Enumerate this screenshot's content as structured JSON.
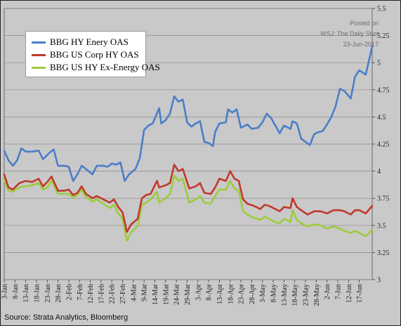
{
  "chart_data": {
    "type": "line",
    "title": "",
    "xlabel": "",
    "ylabel": "",
    "ylim": [
      3.0,
      5.5
    ],
    "y_ticks": [
      "3",
      "3.25",
      "3.5",
      "3.75",
      "4",
      "4.25",
      "4.5",
      "4.75",
      "5",
      "5.25",
      "5.5"
    ],
    "y_axis_side": "right",
    "grid": "horizontal",
    "legend_position": "top-left",
    "x_ticks": [
      "3-Jan",
      "8-Jan",
      "13-Jan",
      "18-Jan",
      "23-Jan",
      "28-Jan",
      "2-Feb",
      "7-Feb",
      "12-Feb",
      "17-Feb",
      "22-Feb",
      "27-Feb",
      "4-Mar",
      "9-Mar",
      "14-Mar",
      "19-Mar",
      "24-Mar",
      "29-Mar",
      "3-Apr",
      "8-Apr",
      "13-Apr",
      "18-Apr",
      "23-Apr",
      "28-Apr",
      "3-May",
      "8-May",
      "13-May",
      "18-May",
      "23-May",
      "28-May",
      "2-Jun",
      "7-Jun",
      "12-Jun",
      "17-Jun"
    ],
    "x_range": [
      "3-Jan",
      "23-Jun"
    ],
    "series": [
      {
        "name": "BBG HY Enery OAS",
        "color": "#4a7ec8",
        "points": [
          [
            "3-Jan",
            4.19
          ],
          [
            "5-Jan",
            4.1
          ],
          [
            "7-Jan",
            4.05
          ],
          [
            "9-Jan",
            4.1
          ],
          [
            "11-Jan",
            4.21
          ],
          [
            "13-Jan",
            4.18
          ],
          [
            "16-Jan",
            4.18
          ],
          [
            "19-Jan",
            4.19
          ],
          [
            "21-Jan",
            4.11
          ],
          [
            "24-Jan",
            4.17
          ],
          [
            "26-Jan",
            4.2
          ],
          [
            "28-Jan",
            4.05
          ],
          [
            "31-Jan",
            4.05
          ],
          [
            "2-Feb",
            4.04
          ],
          [
            "4-Feb",
            3.91
          ],
          [
            "6-Feb",
            3.97
          ],
          [
            "8-Feb",
            4.05
          ],
          [
            "10-Feb",
            4.02
          ],
          [
            "13-Feb",
            3.97
          ],
          [
            "15-Feb",
            4.05
          ],
          [
            "18-Feb",
            4.05
          ],
          [
            "20-Feb",
            4.04
          ],
          [
            "22-Feb",
            4.07
          ],
          [
            "24-Feb",
            4.06
          ],
          [
            "26-Feb",
            4.08
          ],
          [
            "28-Feb",
            3.91
          ],
          [
            "2-Mar",
            3.97
          ],
          [
            "5-Mar",
            4.02
          ],
          [
            "7-Mar",
            4.12
          ],
          [
            "9-Mar",
            4.38
          ],
          [
            "11-Mar",
            4.42
          ],
          [
            "13-Mar",
            4.44
          ],
          [
            "16-Mar",
            4.58
          ],
          [
            "17-Mar",
            4.44
          ],
          [
            "19-Mar",
            4.47
          ],
          [
            "21-Mar",
            4.53
          ],
          [
            "23-Mar",
            4.69
          ],
          [
            "25-Mar",
            4.64
          ],
          [
            "27-Mar",
            4.66
          ],
          [
            "29-Mar",
            4.45
          ],
          [
            "31-Mar",
            4.41
          ],
          [
            "2-Apr",
            4.44
          ],
          [
            "4-Apr",
            4.46
          ],
          [
            "6-Apr",
            4.27
          ],
          [
            "8-Apr",
            4.26
          ],
          [
            "10-Apr",
            4.23
          ],
          [
            "11-Apr",
            4.36
          ],
          [
            "13-Apr",
            4.44
          ],
          [
            "16-Apr",
            4.45
          ],
          [
            "17-Apr",
            4.57
          ],
          [
            "19-Apr",
            4.54
          ],
          [
            "21-Apr",
            4.57
          ],
          [
            "23-Apr",
            4.4
          ],
          [
            "26-Apr",
            4.43
          ],
          [
            "28-Apr",
            4.39
          ],
          [
            "1-May",
            4.4
          ],
          [
            "3-May",
            4.45
          ],
          [
            "5-May",
            4.53
          ],
          [
            "7-May",
            4.49
          ],
          [
            "9-May",
            4.42
          ],
          [
            "11-May",
            4.35
          ],
          [
            "13-May",
            4.42
          ],
          [
            "16-May",
            4.39
          ],
          [
            "17-May",
            4.46
          ],
          [
            "19-May",
            4.44
          ],
          [
            "21-May",
            4.3
          ],
          [
            "23-May",
            4.27
          ],
          [
            "25-May",
            4.24
          ],
          [
            "27-May",
            4.34
          ],
          [
            "29-May",
            4.36
          ],
          [
            "31-May",
            4.37
          ],
          [
            "2-Jun",
            4.43
          ],
          [
            "4-Jun",
            4.5
          ],
          [
            "6-Jun",
            4.6
          ],
          [
            "8-Jun",
            4.76
          ],
          [
            "10-Jun",
            4.74
          ],
          [
            "13-Jun",
            4.67
          ],
          [
            "15-Jun",
            4.87
          ],
          [
            "17-Jun",
            4.93
          ],
          [
            "20-Jun",
            4.89
          ],
          [
            "23-Jun",
            5.15
          ]
        ]
      },
      {
        "name": "BBG US Corp HY OAS",
        "color": "#c0392b",
        "points": [
          [
            "3-Jan",
            3.97
          ],
          [
            "5-Jan",
            3.85
          ],
          [
            "7-Jan",
            3.83
          ],
          [
            "10-Jan",
            3.89
          ],
          [
            "13-Jan",
            3.91
          ],
          [
            "16-Jan",
            3.9
          ],
          [
            "19-Jan",
            3.93
          ],
          [
            "21-Jan",
            3.86
          ],
          [
            "23-Jan",
            3.9
          ],
          [
            "25-Jan",
            3.95
          ],
          [
            "28-Jan",
            3.82
          ],
          [
            "31-Jan",
            3.82
          ],
          [
            "2-Feb",
            3.83
          ],
          [
            "4-Feb",
            3.78
          ],
          [
            "6-Feb",
            3.8
          ],
          [
            "8-Feb",
            3.86
          ],
          [
            "10-Feb",
            3.79
          ],
          [
            "13-Feb",
            3.75
          ],
          [
            "15-Feb",
            3.77
          ],
          [
            "18-Feb",
            3.74
          ],
          [
            "21-Feb",
            3.71
          ],
          [
            "23-Feb",
            3.74
          ],
          [
            "25-Feb",
            3.67
          ],
          [
            "27-Feb",
            3.62
          ],
          [
            "1-Mar",
            3.44
          ],
          [
            "3-Mar",
            3.51
          ],
          [
            "6-Mar",
            3.56
          ],
          [
            "8-Mar",
            3.75
          ],
          [
            "10-Mar",
            3.78
          ],
          [
            "12-Mar",
            3.79
          ],
          [
            "15-Mar",
            3.91
          ],
          [
            "16-Mar",
            3.85
          ],
          [
            "19-Mar",
            3.87
          ],
          [
            "21-Mar",
            3.89
          ],
          [
            "23-Mar",
            4.06
          ],
          [
            "25-Mar",
            4.0
          ],
          [
            "27-Mar",
            4.02
          ],
          [
            "30-Mar",
            3.84
          ],
          [
            "2-Apr",
            3.86
          ],
          [
            "4-Apr",
            3.89
          ],
          [
            "6-Apr",
            3.8
          ],
          [
            "9-Apr",
            3.79
          ],
          [
            "11-Apr",
            3.85
          ],
          [
            "13-Apr",
            3.93
          ],
          [
            "16-Apr",
            3.91
          ],
          [
            "18-Apr",
            4.0
          ],
          [
            "20-Apr",
            3.93
          ],
          [
            "22-Apr",
            3.91
          ],
          [
            "24-Apr",
            3.74
          ],
          [
            "26-Apr",
            3.7
          ],
          [
            "29-Apr",
            3.68
          ],
          [
            "2-May",
            3.65
          ],
          [
            "4-May",
            3.69
          ],
          [
            "6-May",
            3.68
          ],
          [
            "9-May",
            3.65
          ],
          [
            "11-May",
            3.63
          ],
          [
            "13-May",
            3.67
          ],
          [
            "16-May",
            3.66
          ],
          [
            "17-May",
            3.75
          ],
          [
            "19-May",
            3.67
          ],
          [
            "21-May",
            3.64
          ],
          [
            "24-May",
            3.6
          ],
          [
            "27-May",
            3.63
          ],
          [
            "30-May",
            3.63
          ],
          [
            "2-Jun",
            3.61
          ],
          [
            "5-Jun",
            3.64
          ],
          [
            "8-Jun",
            3.64
          ],
          [
            "10-Jun",
            3.63
          ],
          [
            "13-Jun",
            3.6
          ],
          [
            "15-Jun",
            3.64
          ],
          [
            "17-Jun",
            3.64
          ],
          [
            "20-Jun",
            3.61
          ],
          [
            "23-Jun",
            3.68
          ]
        ]
      },
      {
        "name": "BBG US HY Ex-Energy OAS",
        "color": "#9ccc3c",
        "points": [
          [
            "3-Jan",
            3.92
          ],
          [
            "5-Jan",
            3.82
          ],
          [
            "7-Jan",
            3.81
          ],
          [
            "10-Jan",
            3.85
          ],
          [
            "13-Jan",
            3.86
          ],
          [
            "16-Jan",
            3.87
          ],
          [
            "19-Jan",
            3.89
          ],
          [
            "21-Jan",
            3.83
          ],
          [
            "23-Jan",
            3.85
          ],
          [
            "25-Jan",
            3.91
          ],
          [
            "28-Jan",
            3.79
          ],
          [
            "31-Jan",
            3.79
          ],
          [
            "2-Feb",
            3.79
          ],
          [
            "4-Feb",
            3.76
          ],
          [
            "6-Feb",
            3.78
          ],
          [
            "8-Feb",
            3.83
          ],
          [
            "10-Feb",
            3.76
          ],
          [
            "13-Feb",
            3.72
          ],
          [
            "15-Feb",
            3.74
          ],
          [
            "18-Feb",
            3.7
          ],
          [
            "21-Feb",
            3.66
          ],
          [
            "23-Feb",
            3.69
          ],
          [
            "25-Feb",
            3.61
          ],
          [
            "27-Feb",
            3.56
          ],
          [
            "1-Mar",
            3.36
          ],
          [
            "3-Mar",
            3.44
          ],
          [
            "6-Mar",
            3.49
          ],
          [
            "8-Mar",
            3.69
          ],
          [
            "10-Mar",
            3.71
          ],
          [
            "12-Mar",
            3.74
          ],
          [
            "15-Mar",
            3.81
          ],
          [
            "16-Mar",
            3.71
          ],
          [
            "19-Mar",
            3.75
          ],
          [
            "21-Mar",
            3.79
          ],
          [
            "23-Mar",
            3.96
          ],
          [
            "25-Mar",
            3.91
          ],
          [
            "27-Mar",
            3.93
          ],
          [
            "30-Mar",
            3.71
          ],
          [
            "2-Apr",
            3.74
          ],
          [
            "4-Apr",
            3.77
          ],
          [
            "6-Apr",
            3.71
          ],
          [
            "9-Apr",
            3.7
          ],
          [
            "11-Apr",
            3.77
          ],
          [
            "13-Apr",
            3.83
          ],
          [
            "16-Apr",
            3.83
          ],
          [
            "18-Apr",
            3.91
          ],
          [
            "20-Apr",
            3.84
          ],
          [
            "22-Apr",
            3.82
          ],
          [
            "24-Apr",
            3.63
          ],
          [
            "26-Apr",
            3.6
          ],
          [
            "29-Apr",
            3.57
          ],
          [
            "2-May",
            3.55
          ],
          [
            "4-May",
            3.58
          ],
          [
            "6-May",
            3.56
          ],
          [
            "9-May",
            3.53
          ],
          [
            "11-May",
            3.52
          ],
          [
            "13-May",
            3.56
          ],
          [
            "16-May",
            3.53
          ],
          [
            "17-May",
            3.64
          ],
          [
            "19-May",
            3.55
          ],
          [
            "21-May",
            3.52
          ],
          [
            "24-May",
            3.49
          ],
          [
            "27-May",
            3.51
          ],
          [
            "30-May",
            3.5
          ],
          [
            "2-Jun",
            3.47
          ],
          [
            "5-Jun",
            3.49
          ],
          [
            "8-Jun",
            3.47
          ],
          [
            "10-Jun",
            3.45
          ],
          [
            "13-Jun",
            3.43
          ],
          [
            "15-Jun",
            3.45
          ],
          [
            "17-Jun",
            3.43
          ],
          [
            "20-Jun",
            3.4
          ],
          [
            "23-Jun",
            3.46
          ]
        ]
      }
    ]
  },
  "annotation": {
    "posted_on": "Posted on",
    "publication": "WSJ: The Daily Shot",
    "date": "23-Jun-2017"
  },
  "legend": {
    "items": [
      {
        "label": "BBG HY Enery OAS"
      },
      {
        "label": "BBG US Corp HY OAS"
      },
      {
        "label": "BBG US HY Ex-Energy OAS"
      }
    ]
  },
  "source": "Source: Strata Analytics, Bloomberg"
}
